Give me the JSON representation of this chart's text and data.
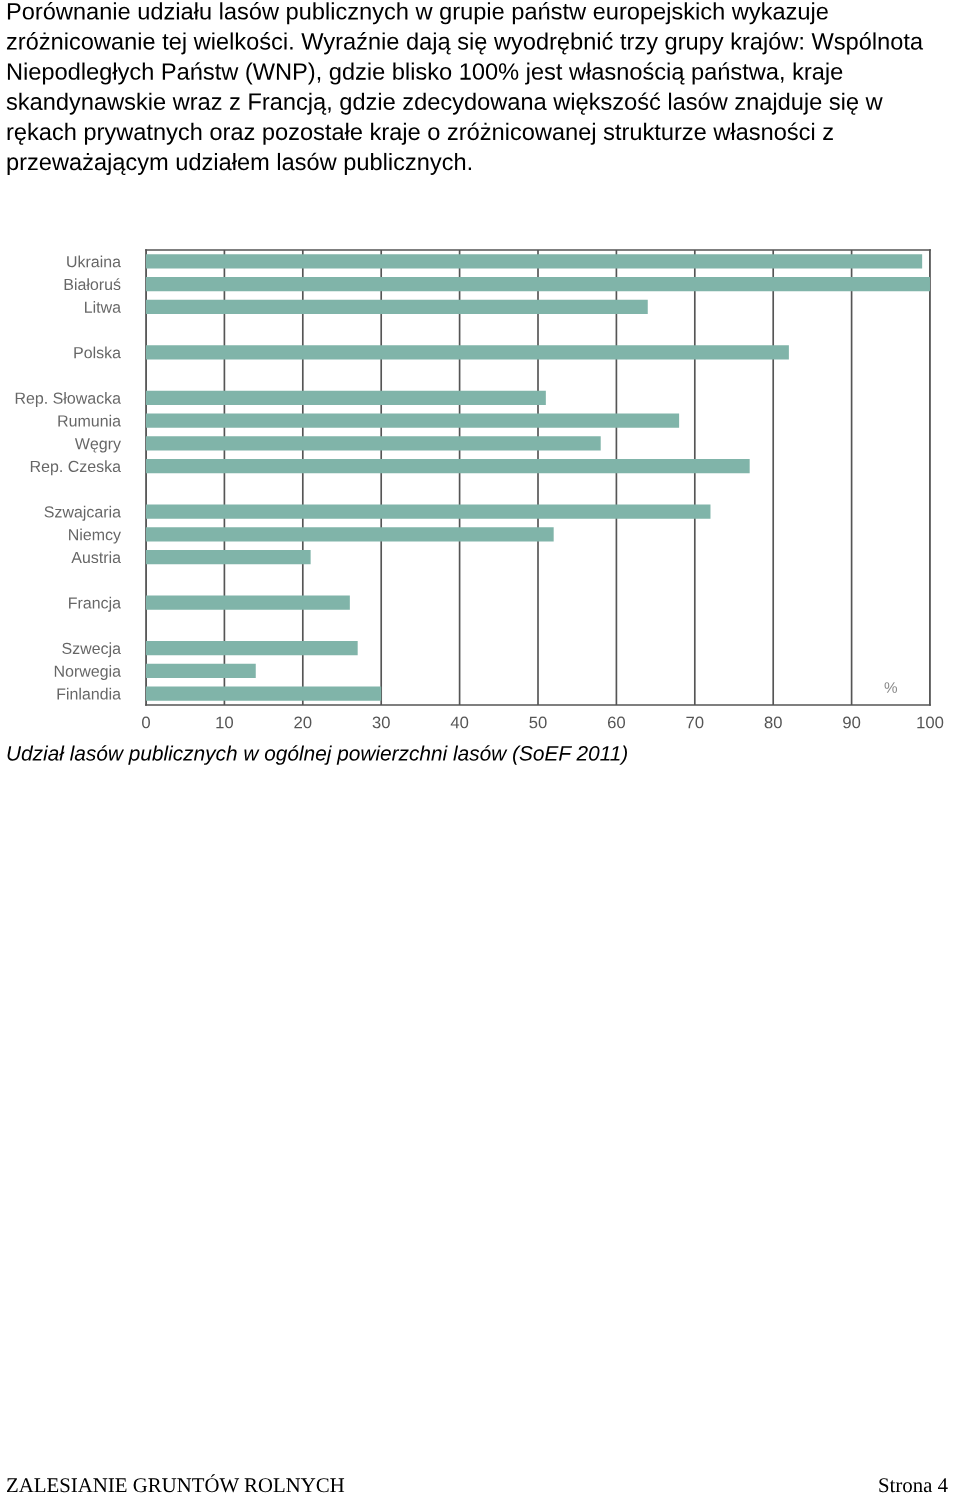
{
  "chart_data": {
    "type": "bar",
    "orientation": "horizontal",
    "title": "Porównanie udziału lasów publicznych w grupie państw europejskich wykazuje zróżnicowanie tej wielkości. Wyraźnie dają się wyodrębnić trzy grupy krajów: Wspólnota Niepodległych Państw (WNP), gdzie blisko 100% jest własnością państwa, kraje skandynawskie wraz z Francją, gdzie zdecydowana większość lasów znajduje się w rękach prywatnych oraz pozostałe kraje o zróżnicowanej strukturze własności z przeważającym udziałem lasów publicznych.",
    "categories": [
      "Ukraina",
      "Białoruś",
      "Litwa",
      null,
      "Polska",
      null,
      "Rep. Słowacka",
      "Rumunia",
      "Węgry",
      "Rep. Czeska",
      null,
      "Szwajcaria",
      "Niemcy",
      "Austria",
      null,
      "Francja",
      null,
      "Szwecja",
      "Norwegia",
      "Finlandia"
    ],
    "values": [
      99,
      100,
      64,
      null,
      82,
      null,
      51,
      68,
      58,
      77,
      null,
      72,
      52,
      21,
      null,
      26,
      null,
      27,
      14,
      30
    ],
    "color": "#80b4a9",
    "xlim": [
      0,
      100
    ],
    "xticks": [
      0,
      10,
      20,
      30,
      40,
      50,
      60,
      70,
      80,
      90,
      100
    ],
    "grid": "x",
    "legend": false,
    "annotations": [
      "%",
      "Udział lasów publicznych w ogólnej powierzchni lasów (SoEF 2011)",
      "ZALESIANIE GRUNTÓW ROLNYCH",
      "Strona 4"
    ]
  }
}
